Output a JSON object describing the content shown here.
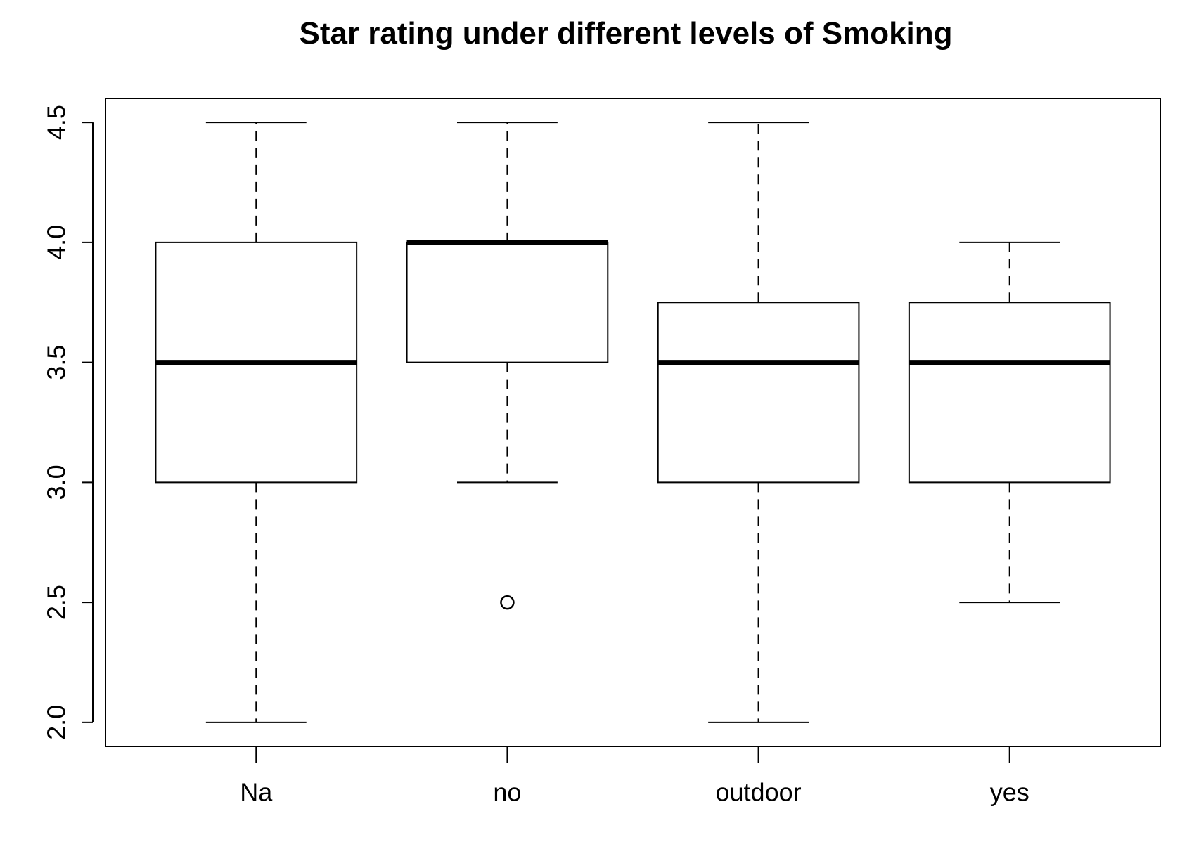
{
  "chart_data": {
    "type": "box",
    "title": "Star rating under different levels of Smoking",
    "xlabel": "",
    "ylabel": "",
    "categories": [
      "Na",
      "no",
      "outdoor",
      "yes"
    ],
    "ylim": [
      1.9,
      4.6
    ],
    "yticks": [
      "2.0",
      "2.5",
      "3.0",
      "3.5",
      "4.0",
      "4.5"
    ],
    "boxes": [
      {
        "category": "Na",
        "whisker_low": 2.0,
        "q1": 3.0,
        "median": 3.5,
        "q3": 4.0,
        "whisker_high": 4.5,
        "outliers": []
      },
      {
        "category": "no",
        "whisker_low": 3.0,
        "q1": 3.5,
        "median": 4.0,
        "q3": 4.0,
        "whisker_high": 4.5,
        "outliers": [
          2.5
        ]
      },
      {
        "category": "outdoor",
        "whisker_low": 2.0,
        "q1": 3.0,
        "median": 3.5,
        "q3": 3.75,
        "whisker_high": 4.5,
        "outliers": []
      },
      {
        "category": "yes",
        "whisker_low": 2.5,
        "q1": 3.0,
        "median": 3.5,
        "q3": 3.75,
        "whisker_high": 4.0,
        "outliers": []
      }
    ],
    "grid": false,
    "colors": {
      "stroke": "#000000",
      "box_fill": "#ffffff",
      "background": "#ffffff"
    }
  }
}
